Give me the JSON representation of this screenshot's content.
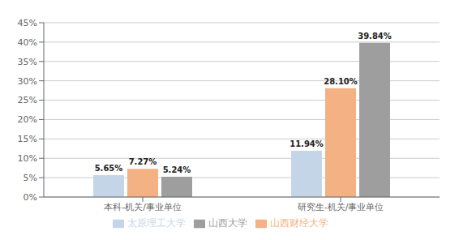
{
  "chart_data": {
    "type": "bar",
    "categories": [
      "本科-机关/事业单位",
      "研究生-机关/事业单位"
    ],
    "series": [
      {
        "name": "太原理工大学",
        "color": "#c5d5e8",
        "values": [
          5.65,
          11.94
        ],
        "value_labels": [
          "5.65%",
          "11.94%"
        ]
      },
      {
        "name": "山西财经大学",
        "color": "#f4b183",
        "values": [
          7.27,
          28.1
        ],
        "value_labels": [
          "7.27%",
          "28.10%"
        ]
      },
      {
        "name": "山西大学",
        "color": "#9e9e9e",
        "values": [
          5.24,
          39.84
        ],
        "value_labels": [
          "5.24%",
          "39.84%"
        ]
      }
    ],
    "ylim": [
      0,
      45
    ],
    "yticks": [
      {
        "value": 0,
        "label": "0%"
      },
      {
        "value": 5,
        "label": "5%"
      },
      {
        "value": 10,
        "label": "10%"
      },
      {
        "value": 15,
        "label": "15%"
      },
      {
        "value": 20,
        "label": "20%"
      },
      {
        "value": 25,
        "label": "25%"
      },
      {
        "value": 30,
        "label": "30%"
      },
      {
        "value": 35,
        "label": "35%"
      },
      {
        "value": 40,
        "label": "40%"
      },
      {
        "value": 45,
        "label": "45%"
      }
    ],
    "grid": true,
    "legend": "bottom",
    "data_labels": true
  }
}
